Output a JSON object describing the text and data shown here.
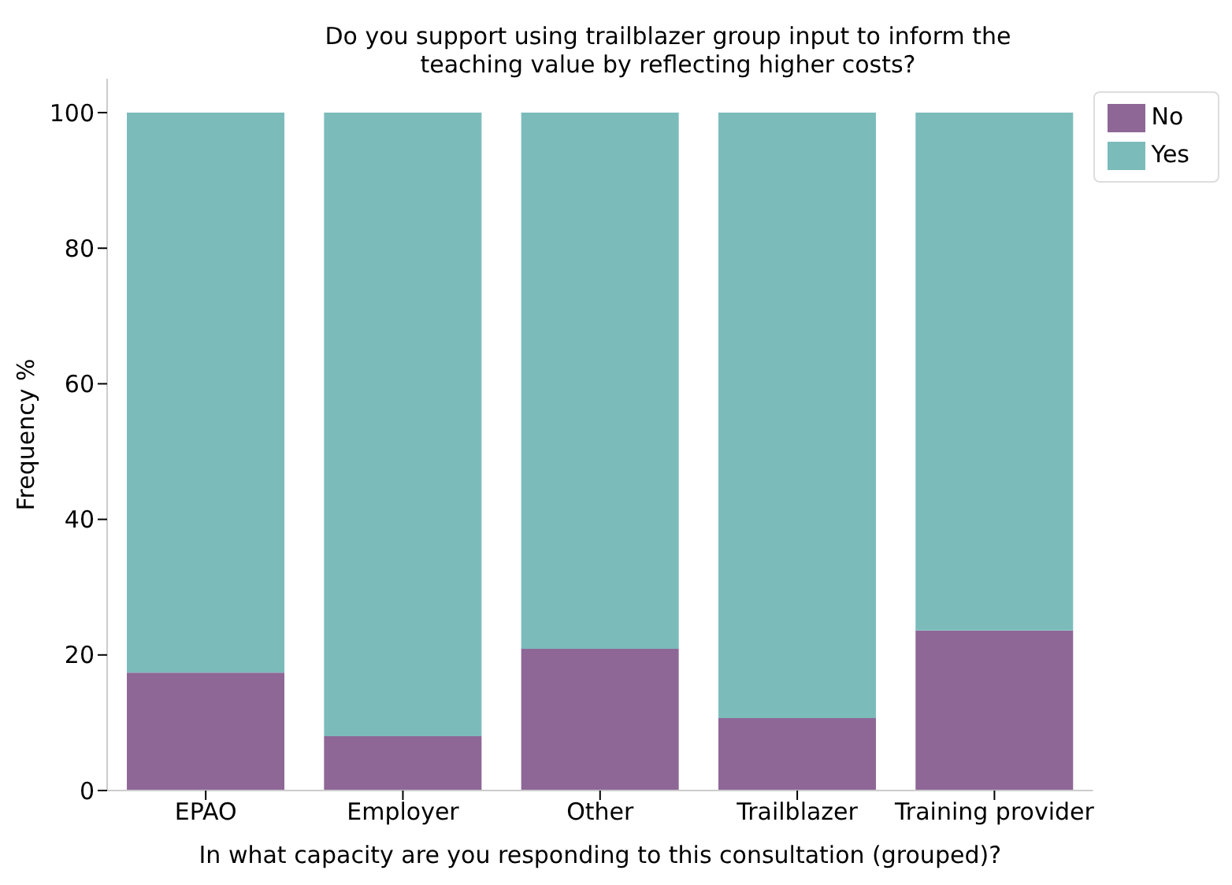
{
  "chart_data": {
    "type": "bar",
    "title": "Do you support using trailblazer group input to inform the\nteaching value by reflecting higher costs?",
    "xlabel": "In what capacity are you responding to this consultation (grouped)?",
    "ylabel": "Frequency %",
    "categories": [
      "EPAO",
      "Employer",
      "Other",
      "Trailblazer",
      "Training provider"
    ],
    "stacked": true,
    "series": [
      {
        "name": "No",
        "color": "#8e6797",
        "values": [
          17.4,
          8.0,
          20.9,
          10.7,
          23.6
        ]
      },
      {
        "name": "Yes",
        "color": "#7bbcbb",
        "values": [
          82.6,
          92.0,
          79.1,
          89.3,
          76.4
        ]
      }
    ],
    "ylim": [
      0,
      105
    ],
    "yticks": [
      0,
      20,
      40,
      60,
      80,
      100
    ],
    "grid": false,
    "legend": "top right"
  }
}
